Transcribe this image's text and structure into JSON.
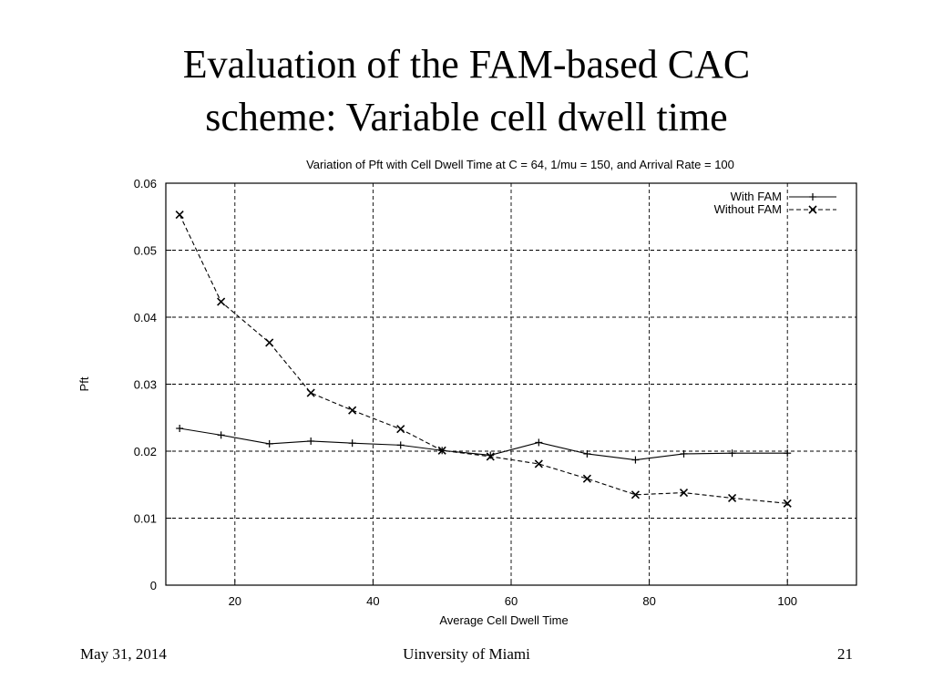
{
  "slide": {
    "title_line1": "Evaluation of the FAM-based CAC",
    "title_line2": "scheme: Variable cell dwell time"
  },
  "footer": {
    "date": "May 31, 2014",
    "organization": "Uinversity of Miami",
    "page_number": "21"
  },
  "chart_data": {
    "type": "line",
    "title": "Variation of Pft with Cell Dwell Time at C = 64, 1/mu = 150, and Arrival Rate = 100",
    "xlabel": "Average Cell Dwell Time",
    "ylabel": "Pft",
    "xlim": [
      10,
      110
    ],
    "ylim": [
      0,
      0.06
    ],
    "xticks": [
      20,
      40,
      60,
      80,
      100
    ],
    "xtick_labels": [
      "20",
      "40",
      "60",
      "80",
      "100"
    ],
    "yticks": [
      0,
      0.01,
      0.02,
      0.03,
      0.04,
      0.05,
      0.06
    ],
    "ytick_labels": [
      "0",
      "0.01",
      "0.02",
      "0.03",
      "0.04",
      "0.05",
      "0.06"
    ],
    "grid": true,
    "legend_position": "top-right",
    "series": [
      {
        "name": "With FAM",
        "line_style": "solid",
        "marker": "plus",
        "x": [
          12,
          18,
          25,
          31,
          37,
          44,
          50,
          57,
          64,
          71,
          78,
          85,
          92,
          100
        ],
        "y": [
          0.0234,
          0.0224,
          0.0211,
          0.0215,
          0.0212,
          0.0209,
          0.0201,
          0.0194,
          0.0213,
          0.0196,
          0.0187,
          0.0196,
          0.0197,
          0.0197
        ]
      },
      {
        "name": "Without FAM",
        "line_style": "dashed",
        "marker": "x",
        "x": [
          12,
          18,
          25,
          31,
          37,
          44,
          50,
          57,
          64,
          71,
          78,
          85,
          92,
          100
        ],
        "y": [
          0.0553,
          0.0423,
          0.0362,
          0.0287,
          0.0261,
          0.0233,
          0.0201,
          0.0192,
          0.0181,
          0.0159,
          0.0135,
          0.0138,
          0.013,
          0.0122
        ]
      }
    ]
  }
}
